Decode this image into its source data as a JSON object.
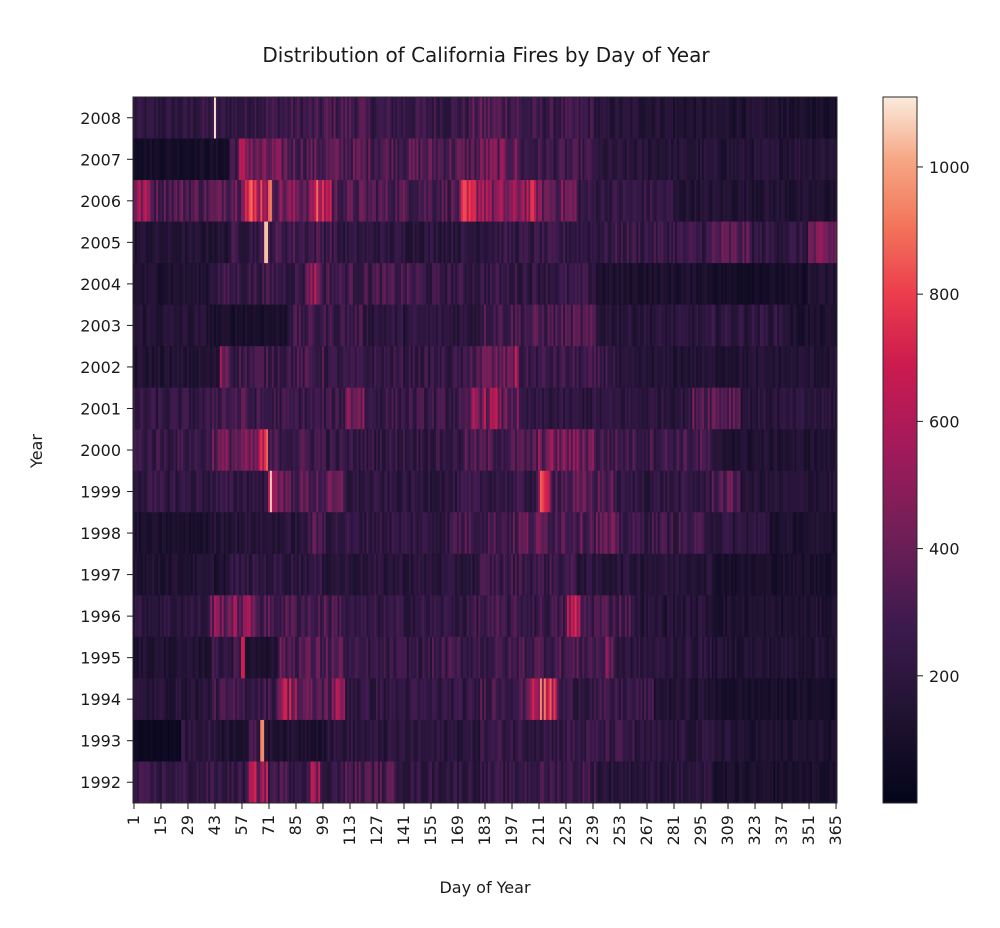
{
  "chart_data": {
    "type": "heatmap",
    "title": "Distribution of California Fires by Day of Year",
    "xlabel": "Day of Year",
    "ylabel": "Year",
    "years": [
      "2008",
      "2007",
      "2006",
      "2005",
      "2004",
      "2003",
      "2002",
      "2001",
      "2000",
      "1999",
      "1998",
      "1997",
      "1996",
      "1995",
      "1994",
      "1993",
      "1992"
    ],
    "x_tick_labels": [
      "1",
      "15",
      "29",
      "43",
      "57",
      "71",
      "85",
      "99",
      "113",
      "127",
      "141",
      "155",
      "169",
      "183",
      "197",
      "211",
      "225",
      "239",
      "253",
      "267",
      "281",
      "295",
      "309",
      "323",
      "337",
      "351",
      "365"
    ],
    "colorbar_ticks": [
      "200",
      "400",
      "600",
      "800",
      "1000"
    ],
    "colorbar_range": [
      0,
      1110
    ],
    "colormap": "rocket",
    "days": 365,
    "approx_segments": {
      "2008": [
        [
          1,
          30,
          200
        ],
        [
          31,
          42,
          230
        ],
        [
          43,
          43,
          1100
        ],
        [
          44,
          60,
          220
        ],
        [
          61,
          99,
          260
        ],
        [
          100,
          120,
          300
        ],
        [
          121,
          175,
          250
        ],
        [
          176,
          200,
          320
        ],
        [
          201,
          240,
          250
        ],
        [
          241,
          280,
          170
        ],
        [
          281,
          340,
          140
        ],
        [
          341,
          365,
          110
        ]
      ],
      "2007": [
        [
          1,
          50,
          90
        ],
        [
          51,
          55,
          300
        ],
        [
          56,
          62,
          500
        ],
        [
          63,
          80,
          380
        ],
        [
          81,
          180,
          330
        ],
        [
          181,
          200,
          400
        ],
        [
          201,
          240,
          260
        ],
        [
          241,
          280,
          170
        ],
        [
          281,
          340,
          160
        ],
        [
          341,
          365,
          180
        ]
      ],
      "2006": [
        [
          1,
          10,
          500
        ],
        [
          11,
          45,
          330
        ],
        [
          46,
          56,
          420
        ],
        [
          57,
          72,
          700
        ],
        [
          73,
          93,
          430
        ],
        [
          94,
          103,
          640
        ],
        [
          104,
          170,
          320
        ],
        [
          171,
          185,
          600
        ],
        [
          186,
          200,
          450
        ],
        [
          201,
          210,
          560
        ],
        [
          211,
          230,
          400
        ],
        [
          231,
          280,
          230
        ],
        [
          281,
          340,
          150
        ],
        [
          341,
          365,
          130
        ]
      ],
      "2005": [
        [
          1,
          50,
          150
        ],
        [
          51,
          68,
          240
        ],
        [
          69,
          70,
          1050
        ],
        [
          71,
          105,
          280
        ],
        [
          106,
          180,
          200
        ],
        [
          181,
          250,
          230
        ],
        [
          251,
          300,
          250
        ],
        [
          301,
          320,
          330
        ],
        [
          321,
          350,
          220
        ],
        [
          351,
          365,
          380
        ]
      ],
      "2004": [
        [
          1,
          40,
          140
        ],
        [
          41,
          90,
          250
        ],
        [
          91,
          97,
          520
        ],
        [
          98,
          150,
          280
        ],
        [
          151,
          190,
          240
        ],
        [
          191,
          240,
          230
        ],
        [
          241,
          300,
          120
        ],
        [
          301,
          350,
          90
        ],
        [
          351,
          365,
          140
        ]
      ],
      "2003": [
        [
          1,
          40,
          160
        ],
        [
          41,
          80,
          110
        ],
        [
          81,
          120,
          260
        ],
        [
          121,
          180,
          200
        ],
        [
          181,
          240,
          300
        ],
        [
          241,
          300,
          180
        ],
        [
          301,
          340,
          210
        ],
        [
          341,
          365,
          120
        ]
      ],
      "2002": [
        [
          1,
          45,
          140
        ],
        [
          46,
          50,
          450
        ],
        [
          51,
          100,
          270
        ],
        [
          101,
          175,
          230
        ],
        [
          176,
          195,
          360
        ],
        [
          196,
          200,
          500
        ],
        [
          201,
          250,
          250
        ],
        [
          251,
          365,
          150
        ]
      ],
      "2001": [
        [
          1,
          40,
          220
        ],
        [
          41,
          60,
          300
        ],
        [
          61,
          110,
          250
        ],
        [
          111,
          120,
          450
        ],
        [
          121,
          175,
          250
        ],
        [
          176,
          190,
          500
        ],
        [
          191,
          200,
          380
        ],
        [
          201,
          290,
          200
        ],
        [
          291,
          315,
          370
        ],
        [
          316,
          365,
          180
        ]
      ],
      "2000": [
        [
          1,
          40,
          250
        ],
        [
          41,
          65,
          380
        ],
        [
          66,
          70,
          640
        ],
        [
          71,
          100,
          280
        ],
        [
          101,
          170,
          230
        ],
        [
          171,
          210,
          300
        ],
        [
          211,
          240,
          420
        ],
        [
          241,
          300,
          280
        ],
        [
          301,
          365,
          140
        ]
      ],
      "1999": [
        [
          1,
          70,
          220
        ],
        [
          71,
          75,
          800
        ],
        [
          76,
          110,
          340
        ],
        [
          111,
          170,
          200
        ],
        [
          171,
          210,
          230
        ],
        [
          211,
          217,
          620
        ],
        [
          218,
          250,
          330
        ],
        [
          251,
          300,
          210
        ],
        [
          301,
          315,
          330
        ],
        [
          316,
          365,
          160
        ]
      ],
      "1998": [
        [
          1,
          40,
          110
        ],
        [
          41,
          90,
          170
        ],
        [
          91,
          100,
          300
        ],
        [
          101,
          165,
          220
        ],
        [
          166,
          200,
          300
        ],
        [
          201,
          250,
          350
        ],
        [
          251,
          300,
          260
        ],
        [
          301,
          330,
          200
        ],
        [
          331,
          365,
          120
        ]
      ],
      "1997": [
        [
          1,
          50,
          140
        ],
        [
          51,
          100,
          210
        ],
        [
          101,
          180,
          180
        ],
        [
          181,
          230,
          260
        ],
        [
          231,
          300,
          180
        ],
        [
          301,
          365,
          110
        ]
      ],
      "1996": [
        [
          1,
          40,
          200
        ],
        [
          41,
          65,
          440
        ],
        [
          66,
          110,
          300
        ],
        [
          111,
          175,
          220
        ],
        [
          176,
          225,
          260
        ],
        [
          226,
          232,
          560
        ],
        [
          233,
          260,
          300
        ],
        [
          261,
          300,
          170
        ],
        [
          301,
          365,
          130
        ]
      ],
      "1995": [
        [
          1,
          40,
          140
        ],
        [
          41,
          56,
          240
        ],
        [
          57,
          58,
          700
        ],
        [
          59,
          75,
          140
        ],
        [
          76,
          110,
          330
        ],
        [
          111,
          155,
          230
        ],
        [
          156,
          200,
          260
        ],
        [
          201,
          245,
          300
        ],
        [
          246,
          250,
          400
        ],
        [
          251,
          300,
          190
        ],
        [
          301,
          365,
          150
        ]
      ],
      "1994": [
        [
          1,
          40,
          170
        ],
        [
          41,
          75,
          260
        ],
        [
          76,
          85,
          560
        ],
        [
          86,
          103,
          340
        ],
        [
          104,
          110,
          480
        ],
        [
          111,
          180,
          220
        ],
        [
          181,
          205,
          300
        ],
        [
          206,
          220,
          680
        ],
        [
          221,
          270,
          240
        ],
        [
          271,
          300,
          150
        ],
        [
          301,
          365,
          100
        ]
      ],
      "1993": [
        [
          1,
          25,
          50
        ],
        [
          26,
          45,
          200
        ],
        [
          46,
          60,
          140
        ],
        [
          61,
          66,
          250
        ],
        [
          67,
          68,
          950
        ],
        [
          69,
          100,
          140
        ],
        [
          101,
          180,
          190
        ],
        [
          181,
          260,
          240
        ],
        [
          261,
          310,
          180
        ],
        [
          311,
          365,
          130
        ]
      ],
      "1992": [
        [
          1,
          60,
          230
        ],
        [
          61,
          70,
          520
        ],
        [
          71,
          92,
          280
        ],
        [
          93,
          97,
          500
        ],
        [
          98,
          110,
          240
        ],
        [
          111,
          140,
          300
        ],
        [
          141,
          200,
          220
        ],
        [
          201,
          240,
          260
        ],
        [
          241,
          300,
          180
        ],
        [
          301,
          365,
          110
        ]
      ]
    }
  }
}
